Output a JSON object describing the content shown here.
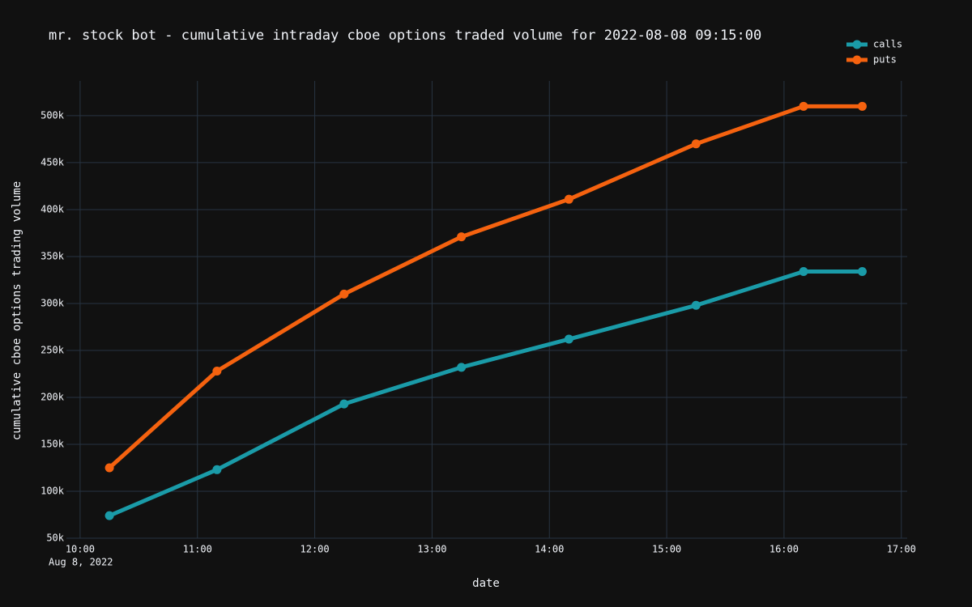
{
  "chart_data": {
    "type": "line",
    "title": "mr. stock bot - cumulative intraday cboe options traded volume for 2022-08-08 09:15:00",
    "x_label": "date",
    "y_label": "cumulative cboe options trading volume",
    "x_date_label": "Aug 8, 2022",
    "x": [
      "2022-08-08 10:15",
      "2022-08-08 11:10",
      "2022-08-08 12:15",
      "2022-08-08 13:15",
      "2022-08-08 14:10",
      "2022-08-08 15:15",
      "2022-08-08 16:10",
      "2022-08-08 16:40"
    ],
    "series": [
      {
        "name": "calls",
        "color": "#1a9ba8",
        "values": [
          74000,
          123000,
          193000,
          232000,
          262000,
          298000,
          334000,
          334000
        ]
      },
      {
        "name": "puts",
        "color": "#f5620f",
        "values": [
          125000,
          228000,
          310000,
          371000,
          411000,
          470000,
          510000,
          510000
        ]
      }
    ],
    "xlim": [
      "2022-08-08 09:53",
      "2022-08-08 17:03"
    ],
    "xticks": [
      {
        "value": "2022-08-08 10:00",
        "label": "10:00"
      },
      {
        "value": "2022-08-08 11:00",
        "label": "11:00"
      },
      {
        "value": "2022-08-08 12:00",
        "label": "12:00"
      },
      {
        "value": "2022-08-08 13:00",
        "label": "13:00"
      },
      {
        "value": "2022-08-08 14:00",
        "label": "14:00"
      },
      {
        "value": "2022-08-08 15:00",
        "label": "15:00"
      },
      {
        "value": "2022-08-08 16:00",
        "label": "16:00"
      },
      {
        "value": "2022-08-08 17:00",
        "label": "17:00"
      }
    ],
    "ylim": [
      50000,
      537000
    ],
    "yticks": [
      {
        "value": 50000,
        "label": "50k"
      },
      {
        "value": 100000,
        "label": "100k"
      },
      {
        "value": 150000,
        "label": "150k"
      },
      {
        "value": 200000,
        "label": "200k"
      },
      {
        "value": 250000,
        "label": "250k"
      },
      {
        "value": 300000,
        "label": "300k"
      },
      {
        "value": 350000,
        "label": "350k"
      },
      {
        "value": 400000,
        "label": "400k"
      },
      {
        "value": 450000,
        "label": "450k"
      },
      {
        "value": 500000,
        "label": "500k"
      }
    ],
    "grid": true,
    "legend": "top-right"
  }
}
